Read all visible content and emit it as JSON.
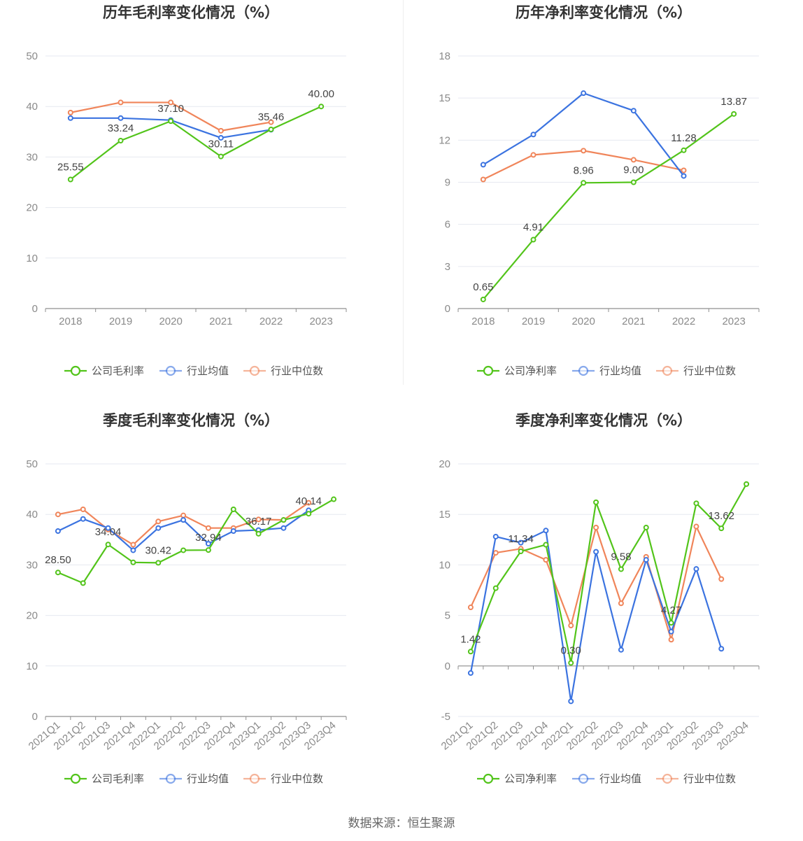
{
  "colors": {
    "company": "#52c41a",
    "avg": "#3b73e0",
    "median": "#f0855a",
    "grid": "#e6e9f0",
    "axis": "#8f8f8f"
  },
  "legend": {
    "company_gross": "公司毛利率",
    "company_net": "公司净利率",
    "avg": "行业均值",
    "median": "行业中位数"
  },
  "source": "数据来源：恒生聚源",
  "chart_data": [
    {
      "type": "line",
      "title": "历年毛利率变化情况（%）",
      "categories": [
        "2018",
        "2019",
        "2020",
        "2021",
        "2022",
        "2023"
      ],
      "ylim": [
        0,
        50
      ],
      "yticks": [
        0,
        10,
        20,
        30,
        40,
        50
      ],
      "legend_position": "bottom",
      "series": [
        {
          "name": "公司毛利率",
          "key": "company",
          "values": [
            25.55,
            33.24,
            37.1,
            30.11,
            35.46,
            40.0
          ],
          "labels": [
            "25.55",
            "33.24",
            "37.10",
            "30.11",
            "35.46",
            "40.00"
          ]
        },
        {
          "name": "行业均值",
          "key": "avg",
          "values": [
            37.7,
            37.7,
            37.3,
            33.8,
            35.4,
            null
          ]
        },
        {
          "name": "行业中位数",
          "key": "median",
          "values": [
            38.8,
            40.8,
            40.8,
            35.2,
            36.9,
            null
          ]
        }
      ]
    },
    {
      "type": "line",
      "title": "历年净利率变化情况（%）",
      "categories": [
        "2018",
        "2019",
        "2020",
        "2021",
        "2022",
        "2023"
      ],
      "ylim": [
        0,
        18
      ],
      "yticks": [
        0,
        3,
        6,
        9,
        12,
        15,
        18
      ],
      "legend_position": "bottom",
      "series": [
        {
          "name": "公司净利率",
          "key": "company",
          "values": [
            0.65,
            4.91,
            8.96,
            9.0,
            11.28,
            13.87
          ],
          "labels": [
            "0.65",
            "4.91",
            "8.96",
            "9.00",
            "11.28",
            "13.87"
          ]
        },
        {
          "name": "行业均值",
          "key": "avg",
          "values": [
            10.25,
            12.4,
            15.35,
            14.1,
            9.45,
            null
          ]
        },
        {
          "name": "行业中位数",
          "key": "median",
          "values": [
            9.2,
            10.95,
            11.25,
            10.6,
            9.85,
            null
          ]
        }
      ]
    },
    {
      "type": "line",
      "title": "季度毛利率变化情况（%）",
      "categories": [
        "2021Q1",
        "2021Q2",
        "2021Q3",
        "2021Q4",
        "2022Q1",
        "2022Q2",
        "2022Q3",
        "2022Q4",
        "2023Q1",
        "2023Q2",
        "2023Q3",
        "2023Q4"
      ],
      "ylim": [
        0,
        50
      ],
      "yticks": [
        0,
        10,
        20,
        30,
        40,
        50
      ],
      "legend_position": "bottom",
      "series": [
        {
          "name": "公司毛利率",
          "key": "company",
          "values": [
            28.5,
            26.4,
            34.04,
            30.5,
            30.42,
            32.9,
            32.94,
            41.0,
            36.17,
            38.9,
            40.14,
            43.0
          ],
          "labels": [
            "28.50",
            "",
            "34.04",
            "",
            "30.42",
            "",
            "32.94",
            "",
            "36.17",
            "",
            "40.14",
            ""
          ]
        },
        {
          "name": "行业均值",
          "key": "avg",
          "values": [
            36.7,
            39.1,
            37.3,
            32.9,
            37.3,
            38.9,
            34.2,
            36.7,
            36.9,
            37.3,
            40.8,
            null
          ]
        },
        {
          "name": "行业中位数",
          "key": "median",
          "values": [
            40.0,
            41.0,
            37.0,
            34.0,
            38.6,
            39.8,
            37.3,
            37.3,
            39.0,
            38.9,
            42.3,
            null
          ]
        }
      ]
    },
    {
      "type": "line",
      "title": "季度净利率变化情况（%）",
      "categories": [
        "2021Q1",
        "2021Q2",
        "2021Q3",
        "2021Q4",
        "2022Q1",
        "2022Q2",
        "2022Q3",
        "2022Q4",
        "2023Q1",
        "2023Q2",
        "2023Q3",
        "2023Q4"
      ],
      "ylim": [
        -5,
        20
      ],
      "yticks": [
        -5,
        0,
        5,
        10,
        15,
        20
      ],
      "legend_position": "bottom",
      "series": [
        {
          "name": "公司净利率",
          "key": "company",
          "values": [
            1.42,
            7.7,
            11.34,
            12.0,
            0.3,
            16.2,
            9.58,
            13.7,
            4.27,
            16.1,
            13.62,
            18.0
          ],
          "labels": [
            "1.42",
            "",
            "11.34",
            "",
            "0.30",
            "",
            "9.58",
            "",
            "4.27",
            "",
            "13.62",
            ""
          ]
        },
        {
          "name": "行业均值",
          "key": "avg",
          "values": [
            -0.7,
            12.8,
            12.2,
            13.4,
            -3.5,
            11.3,
            1.6,
            10.5,
            3.4,
            9.6,
            1.7,
            null
          ]
        },
        {
          "name": "行业中位数",
          "key": "median",
          "values": [
            5.8,
            11.2,
            11.6,
            10.5,
            4.0,
            13.7,
            6.2,
            10.8,
            2.6,
            13.8,
            8.6,
            null
          ]
        }
      ]
    }
  ]
}
